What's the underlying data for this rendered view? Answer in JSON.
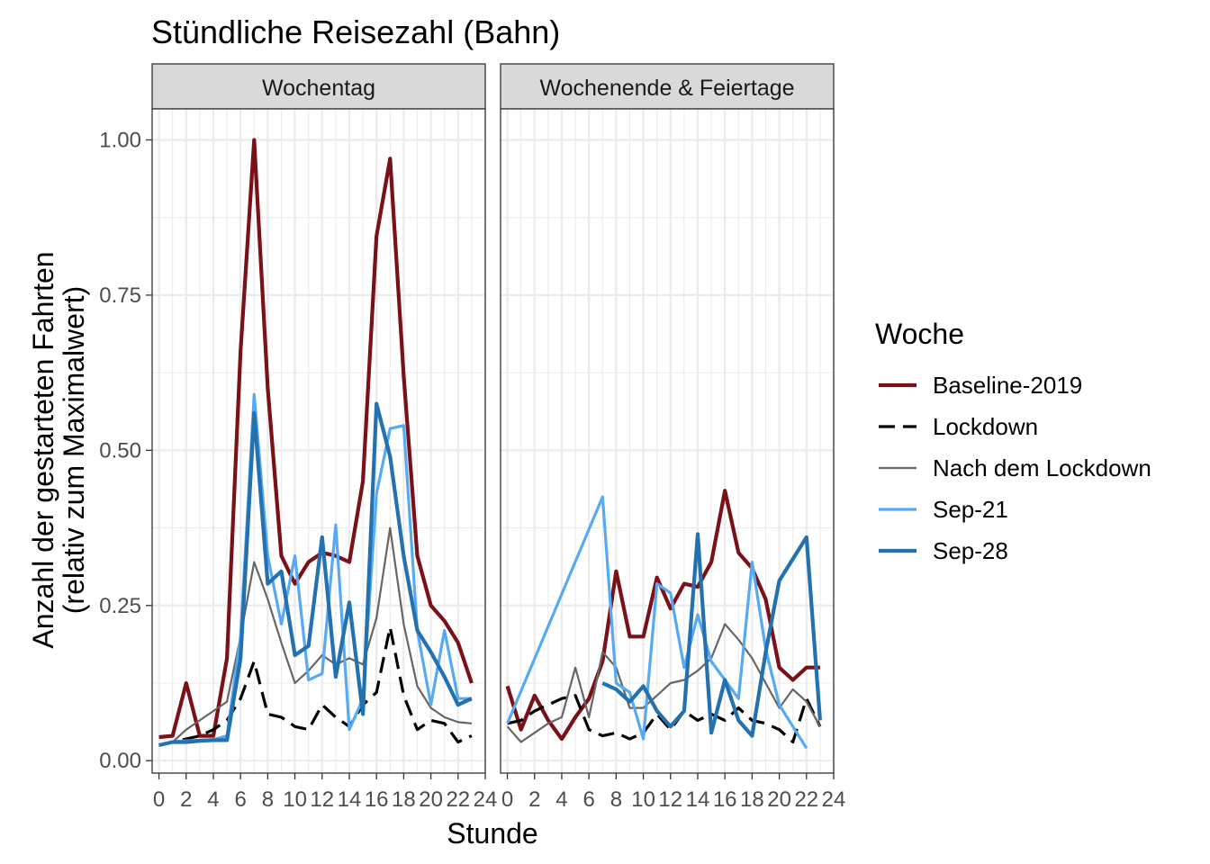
{
  "chart_data": {
    "type": "line",
    "title": "Stündliche Reisezahl (Bahn)",
    "xlabel": "Stunde",
    "ylabel_line1": "Anzahl der gestarteten Fahrten",
    "ylabel_line2": "(relativ zum Maximalwert)",
    "xlim": [
      -0.5,
      24
    ],
    "ylim": [
      -0.02,
      1.05
    ],
    "x_ticks": [
      0,
      2,
      4,
      6,
      8,
      10,
      12,
      14,
      16,
      18,
      20,
      22,
      24
    ],
    "y_ticks": [
      0.0,
      0.25,
      0.5,
      0.75,
      1.0
    ],
    "y_tick_labels": [
      "0.00",
      "0.25",
      "0.50",
      "0.75",
      "1.00"
    ],
    "grid": true,
    "legend": {
      "title": "Woche",
      "placement": "right",
      "entries": [
        "Baseline-2019",
        "Lockdown",
        "Nach dem Lockdown",
        "Sep-21",
        "Sep-28"
      ]
    },
    "series_styles": [
      {
        "name": "Baseline-2019",
        "color": "#7B1118",
        "dash": "solid",
        "weight": "thick"
      },
      {
        "name": "Lockdown",
        "color": "#000000",
        "dash": "dashed",
        "weight": "normal"
      },
      {
        "name": "Nach dem Lockdown",
        "color": "#666666",
        "dash": "solid",
        "weight": "thin"
      },
      {
        "name": "Sep-21",
        "color": "#56A9F2",
        "dash": "solid",
        "weight": "normal"
      },
      {
        "name": "Sep-28",
        "color": "#2371AE",
        "dash": "solid",
        "weight": "thick"
      }
    ],
    "panels": [
      {
        "strip": "Wochentag",
        "series": [
          {
            "name": "Baseline-2019",
            "points": [
              [
                0,
                0.038
              ],
              [
                1,
                0.04
              ],
              [
                2,
                0.125
              ],
              [
                3,
                0.04
              ],
              [
                4,
                0.04
              ],
              [
                5,
                0.165
              ],
              [
                6,
                0.66
              ],
              [
                7,
                1.0
              ],
              [
                8,
                0.6
              ],
              [
                9,
                0.33
              ],
              [
                10,
                0.285
              ],
              [
                11,
                0.32
              ],
              [
                12,
                0.335
              ],
              [
                13,
                0.33
              ],
              [
                14,
                0.32
              ],
              [
                15,
                0.45
              ],
              [
                16,
                0.845
              ],
              [
                17,
                0.97
              ],
              [
                18,
                0.62
              ],
              [
                19,
                0.33
              ],
              [
                20,
                0.25
              ],
              [
                21,
                0.225
              ],
              [
                22,
                0.19
              ],
              [
                23,
                0.125
              ]
            ]
          },
          {
            "name": "Lockdown",
            "points": [
              [
                0,
                0.025
              ],
              [
                1,
                0.03
              ],
              [
                2,
                0.035
              ],
              [
                3,
                0.04
              ],
              [
                4,
                0.05
              ],
              [
                5,
                0.065
              ],
              [
                6,
                0.1
              ],
              [
                7,
                0.16
              ],
              [
                8,
                0.075
              ],
              [
                9,
                0.07
              ],
              [
                10,
                0.055
              ],
              [
                11,
                0.05
              ],
              [
                12,
                0.09
              ],
              [
                13,
                0.07
              ],
              [
                14,
                0.055
              ],
              [
                15,
                0.09
              ],
              [
                16,
                0.11
              ],
              [
                17,
                0.215
              ],
              [
                18,
                0.105
              ],
              [
                19,
                0.05
              ],
              [
                20,
                0.065
              ],
              [
                21,
                0.06
              ],
              [
                22,
                0.03
              ],
              [
                23,
                0.04
              ]
            ]
          },
          {
            "name": "Nach dem Lockdown",
            "points": [
              [
                0,
                0.025
              ],
              [
                1,
                0.03
              ],
              [
                2,
                0.05
              ],
              [
                3,
                0.065
              ],
              [
                4,
                0.08
              ],
              [
                5,
                0.095
              ],
              [
                6,
                0.2
              ],
              [
                7,
                0.32
              ],
              [
                8,
                0.26
              ],
              [
                9,
                0.19
              ],
              [
                10,
                0.125
              ],
              [
                11,
                0.145
              ],
              [
                12,
                0.17
              ],
              [
                13,
                0.155
              ],
              [
                14,
                0.165
              ],
              [
                15,
                0.155
              ],
              [
                16,
                0.23
              ],
              [
                17,
                0.375
              ],
              [
                18,
                0.22
              ],
              [
                19,
                0.12
              ],
              [
                20,
                0.085
              ],
              [
                21,
                0.07
              ],
              [
                22,
                0.062
              ],
              [
                23,
                0.06
              ]
            ]
          },
          {
            "name": "Sep-21",
            "points": [
              [
                0,
                0.025
              ],
              [
                1,
                0.03
              ],
              [
                2,
                0.032
              ],
              [
                3,
                0.033
              ],
              [
                4,
                0.034
              ],
              [
                5,
                0.04
              ],
              [
                6,
                0.2
              ],
              [
                7,
                0.59
              ],
              [
                8,
                0.33
              ],
              [
                9,
                0.22
              ],
              [
                10,
                0.33
              ],
              [
                11,
                0.13
              ],
              [
                12,
                0.14
              ],
              [
                13,
                0.38
              ],
              [
                14,
                0.05
              ],
              [
                15,
                0.1
              ],
              [
                16,
                0.43
              ],
              [
                17,
                0.535
              ],
              [
                18,
                0.54
              ],
              [
                19,
                0.21
              ],
              [
                20,
                0.09
              ],
              [
                21,
                0.21
              ],
              [
                22,
                0.1
              ],
              [
                23,
                0.1
              ]
            ]
          },
          {
            "name": "Sep-28",
            "points": [
              [
                0,
                0.025
              ],
              [
                1,
                0.03
              ],
              [
                2,
                0.03
              ],
              [
                3,
                0.032
              ],
              [
                4,
                0.033
              ],
              [
                5,
                0.033
              ],
              [
                6,
                0.165
              ],
              [
                7,
                0.56
              ],
              [
                8,
                0.285
              ],
              [
                9,
                0.305
              ],
              [
                10,
                0.17
              ],
              [
                11,
                0.185
              ],
              [
                12,
                0.36
              ],
              [
                13,
                0.135
              ],
              [
                14,
                0.255
              ],
              [
                15,
                0.075
              ],
              [
                16,
                0.575
              ],
              [
                17,
                0.49
              ],
              [
                18,
                0.33
              ],
              [
                19,
                0.21
              ],
              [
                20,
                0.175
              ],
              [
                21,
                0.135
              ],
              [
                22,
                0.09
              ],
              [
                23,
                0.1
              ]
            ]
          }
        ]
      },
      {
        "strip": "Wochenende & Feiertage",
        "series": [
          {
            "name": "Baseline-2019",
            "points": [
              [
                0,
                0.12
              ],
              [
                1,
                0.05
              ],
              [
                2,
                0.105
              ],
              [
                3,
                0.065
              ],
              [
                4,
                0.035
              ],
              [
                5,
                0.07
              ],
              [
                6,
                0.1
              ],
              [
                7,
                0.16
              ],
              [
                8,
                0.305
              ],
              [
                9,
                0.2
              ],
              [
                10,
                0.2
              ],
              [
                11,
                0.295
              ],
              [
                12,
                0.245
              ],
              [
                13,
                0.285
              ],
              [
                14,
                0.28
              ],
              [
                15,
                0.32
              ],
              [
                16,
                0.435
              ],
              [
                17,
                0.335
              ],
              [
                18,
                0.31
              ],
              [
                19,
                0.26
              ],
              [
                20,
                0.15
              ],
              [
                21,
                0.13
              ],
              [
                22,
                0.15
              ],
              [
                23,
                0.15
              ]
            ]
          },
          {
            "name": "Lockdown",
            "points": [
              [
                0,
                0.06
              ],
              [
                1,
                0.065
              ],
              [
                2,
                0.08
              ],
              [
                3,
                0.09
              ],
              [
                4,
                0.1
              ],
              [
                5,
                0.105
              ],
              [
                6,
                0.05
              ],
              [
                7,
                0.04
              ],
              [
                8,
                0.045
              ],
              [
                9,
                0.035
              ],
              [
                10,
                0.045
              ],
              [
                11,
                0.075
              ],
              [
                12,
                0.05
              ],
              [
                13,
                0.08
              ],
              [
                14,
                0.065
              ],
              [
                15,
                0.075
              ],
              [
                16,
                0.065
              ],
              [
                17,
                0.085
              ],
              [
                18,
                0.065
              ],
              [
                19,
                0.06
              ],
              [
                20,
                0.05
              ],
              [
                21,
                0.03
              ],
              [
                22,
                0.1
              ],
              [
                23,
                0.055
              ]
            ]
          },
          {
            "name": "Nach dem Lockdown",
            "points": [
              [
                0,
                0.055
              ],
              [
                1,
                0.03
              ],
              [
                2,
                0.045
              ],
              [
                3,
                0.06
              ],
              [
                4,
                0.07
              ],
              [
                5,
                0.15
              ],
              [
                6,
                0.07
              ],
              [
                7,
                0.175
              ],
              [
                8,
                0.15
              ],
              [
                9,
                0.085
              ],
              [
                10,
                0.085
              ],
              [
                11,
                0.105
              ],
              [
                12,
                0.125
              ],
              [
                13,
                0.13
              ],
              [
                14,
                0.145
              ],
              [
                15,
                0.165
              ],
              [
                16,
                0.22
              ],
              [
                17,
                0.195
              ],
              [
                18,
                0.165
              ],
              [
                19,
                0.125
              ],
              [
                20,
                0.085
              ],
              [
                21,
                0.115
              ],
              [
                22,
                0.095
              ],
              [
                23,
                0.055
              ]
            ]
          },
          {
            "name": "Sep-21",
            "points": [
              [
                0,
                0.06
              ],
              [
                7,
                0.425
              ],
              [
                8,
                0.125
              ],
              [
                9,
                0.11
              ],
              [
                10,
                0.035
              ],
              [
                11,
                0.285
              ],
              [
                12,
                0.27
              ],
              [
                13,
                0.15
              ],
              [
                14,
                0.235
              ],
              [
                15,
                0.16
              ],
              [
                16,
                0.13
              ],
              [
                17,
                0.1
              ],
              [
                18,
                0.32
              ],
              [
                19,
                0.18
              ],
              [
                20,
                0.09
              ],
              [
                21,
                0.055
              ],
              [
                22,
                0.02
              ]
            ]
          },
          {
            "name": "Sep-28",
            "points": [
              [
                7,
                0.125
              ],
              [
                8,
                0.115
              ],
              [
                9,
                0.095
              ],
              [
                10,
                0.12
              ],
              [
                11,
                0.08
              ],
              [
                12,
                0.055
              ],
              [
                13,
                0.08
              ],
              [
                14,
                0.365
              ],
              [
                15,
                0.045
              ],
              [
                16,
                0.13
              ],
              [
                17,
                0.065
              ],
              [
                18,
                0.04
              ],
              [
                19,
                0.175
              ],
              [
                20,
                0.29
              ],
              [
                21,
                0.325
              ],
              [
                22,
                0.36
              ],
              [
                23,
                0.065
              ]
            ]
          }
        ]
      }
    ]
  }
}
